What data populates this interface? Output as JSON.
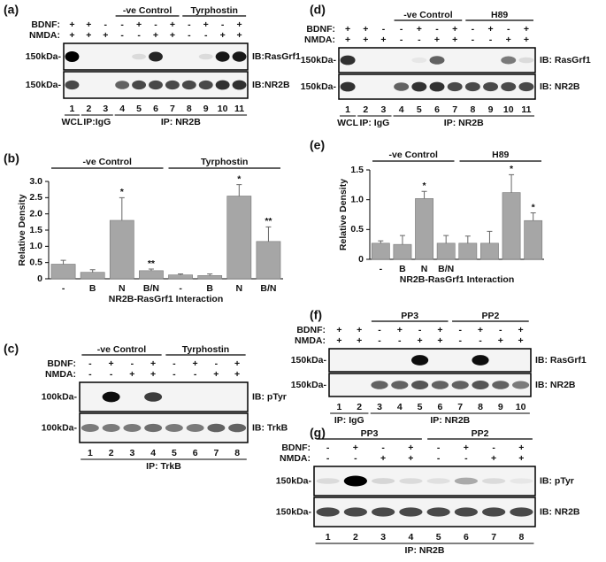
{
  "blots": [
    {
      "label": "(a)",
      "groups": [
        "-ve Control",
        "Tyrphostin"
      ],
      "treatments": [
        {
          "name": "BDNF:",
          "signs": [
            "+",
            "+",
            "-",
            "-",
            "+",
            "-",
            "+",
            "-",
            "+",
            "-",
            "+"
          ]
        },
        {
          "name": "NMDA:",
          "signs": [
            "+",
            "+",
            "+",
            "-",
            "-",
            "+",
            "+",
            "-",
            "-",
            "+",
            "+"
          ]
        }
      ],
      "rows": [
        {
          "marker": "150kDa-",
          "antibody": "IB:RasGrf1"
        },
        {
          "marker": "150kDa-",
          "antibody": "IB:NR2B"
        }
      ],
      "lanes": [
        1,
        2,
        3,
        4,
        5,
        6,
        7,
        8,
        9,
        10,
        11
      ],
      "ip": [
        "WCL",
        "IP:IgG",
        "IP: NR2B"
      ]
    },
    {
      "label": "(d)",
      "groups": [
        "-ve Control",
        "H89"
      ],
      "treatments": [
        {
          "name": "BDNF:",
          "signs": [
            "+",
            "+",
            "-",
            "-",
            "+",
            "-",
            "+",
            "-",
            "+",
            "-",
            "+"
          ]
        },
        {
          "name": "NMDA:",
          "signs": [
            "+",
            "+",
            "+",
            "-",
            "-",
            "+",
            "+",
            "-",
            "-",
            "+",
            "+"
          ]
        }
      ],
      "rows": [
        {
          "marker": "150kDa-",
          "antibody": "IB: RasGrf1"
        },
        {
          "marker": "150kDa-",
          "antibody": "IB: NR2B"
        }
      ],
      "lanes": [
        1,
        2,
        3,
        4,
        5,
        6,
        7,
        8,
        9,
        10,
        11
      ],
      "ip": [
        "WCL",
        "IP: IgG",
        "IP: NR2B"
      ]
    },
    {
      "label": "(c)",
      "groups": [
        "-ve Control",
        "Tyrphostin"
      ],
      "treatments": [
        {
          "name": "BDNF:",
          "signs": [
            "-",
            "+",
            "-",
            "+",
            "-",
            "+",
            "-",
            "+"
          ]
        },
        {
          "name": "NMDA:",
          "signs": [
            "-",
            "-",
            "+",
            "+",
            "-",
            "-",
            "+",
            "+"
          ]
        }
      ],
      "rows": [
        {
          "marker": "100kDa-",
          "antibody": "IB: pTyr"
        },
        {
          "marker": "100kDa-",
          "antibody": "IB: TrkB"
        }
      ],
      "lanes": [
        1,
        2,
        3,
        4,
        5,
        6,
        7,
        8
      ],
      "ip": [
        "IP: TrkB"
      ]
    },
    {
      "label": "(f)",
      "groups": [
        "PP3",
        "PP2"
      ],
      "treatments": [
        {
          "name": "BDNF:",
          "signs": [
            "+",
            "+",
            "-",
            "+",
            "-",
            "+",
            "-",
            "+",
            "-",
            "+"
          ]
        },
        {
          "name": "NMDA:",
          "signs": [
            "+",
            "+",
            "-",
            "-",
            "+",
            "+",
            "-",
            "-",
            "+",
            "+"
          ]
        }
      ],
      "rows": [
        {
          "marker": "150kDa-",
          "antibody": "IB: RasGrf1"
        },
        {
          "marker": "150kDa-",
          "antibody": "IB: NR2B"
        }
      ],
      "lanes": [
        1,
        2,
        3,
        4,
        5,
        6,
        7,
        8,
        9,
        10
      ],
      "ip": [
        "IP: IgG",
        "IP: NR2B"
      ]
    },
    {
      "label": "(g)",
      "groups": [
        "PP3",
        "PP2"
      ],
      "treatments": [
        {
          "name": "BDNF:",
          "signs": [
            "-",
            "+",
            "-",
            "+",
            "-",
            "+",
            "-",
            "+"
          ]
        },
        {
          "name": "NMDA:",
          "signs": [
            "-",
            "-",
            "+",
            "+",
            "-",
            "-",
            "+",
            "+"
          ]
        }
      ],
      "rows": [
        {
          "marker": "150kDa-",
          "antibody": "IB: pTyr"
        },
        {
          "marker": "150kDa-",
          "antibody": "IB: NR2B"
        }
      ],
      "lanes": [
        1,
        2,
        3,
        4,
        5,
        6,
        7,
        8
      ],
      "ip": [
        "IP: NR2B"
      ]
    }
  ],
  "chart_data": [
    {
      "label": "(b)",
      "type": "bar",
      "ylabel": "Relative Density",
      "xlabel": "NR2B-RasGrf1 Interaction",
      "groups": [
        "-ve Control",
        "Tyrphostin"
      ],
      "color": "#a6a6a6",
      "categories": [
        "-",
        "B",
        "N",
        "B/N",
        "-",
        "B",
        "N",
        "B/N"
      ],
      "values": [
        0.45,
        0.2,
        1.8,
        0.25,
        0.12,
        0.1,
        2.55,
        1.15
      ],
      "errors": [
        0.12,
        0.08,
        0.7,
        0.05,
        0.03,
        0.05,
        0.35,
        0.45
      ],
      "annotations": [
        null,
        null,
        "*",
        "**",
        null,
        null,
        "*",
        "**"
      ],
      "ylim": [
        0,
        3
      ],
      "yticks": [
        0,
        0.5,
        {
          "value": 1,
          "label": "1.0"
        },
        1.5,
        {
          "value": 2,
          "label": "2.0"
        },
        2.5,
        {
          "value": 3,
          "label": "3.0"
        }
      ]
    },
    {
      "label": "(e)",
      "type": "bar",
      "ylabel": "Relative Density",
      "xlabel": "NR2B-RasGrf1 Interaction",
      "groups": [
        "-ve Control",
        "H89"
      ],
      "color": "#a6a6a6",
      "categories": [
        "-",
        "B",
        "N",
        "B/N",
        null,
        null,
        null,
        null
      ],
      "values": [
        0.27,
        0.25,
        1.02,
        0.27,
        0.27,
        0.27,
        1.12,
        0.65
      ],
      "errors": [
        0.04,
        0.15,
        0.12,
        0.13,
        0.12,
        0.2,
        0.3,
        0.13
      ],
      "annotations": [
        null,
        null,
        "*",
        null,
        null,
        null,
        "*",
        "*"
      ],
      "ylim": [
        0,
        1.5
      ],
      "yticks": [
        0,
        0.5,
        {
          "value": 1,
          "label": "1.0"
        },
        1.5
      ]
    }
  ]
}
